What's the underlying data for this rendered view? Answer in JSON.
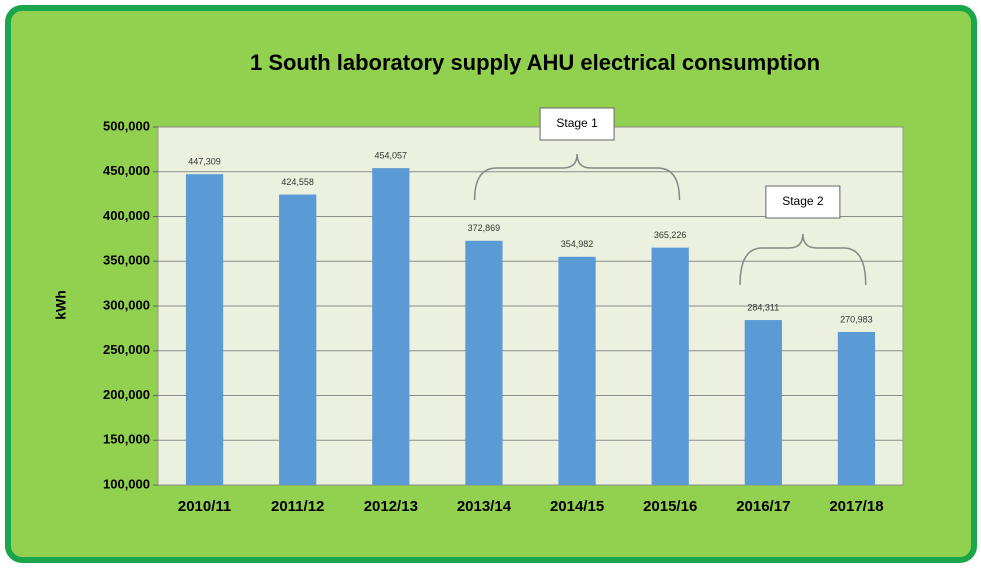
{
  "chart_data": {
    "type": "bar",
    "title": "1 South laboratory supply AHU electrical consumption",
    "ylabel": "kWh",
    "categories": [
      "2010/11",
      "2011/12",
      "2012/13",
      "2013/14",
      "2014/15",
      "2015/16",
      "2016/17",
      "2017/18"
    ],
    "values": [
      447309,
      424558,
      454057,
      372869,
      354982,
      365226,
      284311,
      270983
    ],
    "value_labels": [
      "447,309",
      "424,558",
      "454,057",
      "372,869",
      "354,982",
      "365,226",
      "284,311",
      "270,983"
    ],
    "color": "#5b9bd5",
    "ylim": [
      100000,
      500000
    ],
    "yticks": [
      {
        "value": 100000,
        "label": "100,000"
      },
      {
        "value": 150000,
        "label": "150,000"
      },
      {
        "value": 200000,
        "label": "200,000"
      },
      {
        "value": 250000,
        "label": "250,000"
      },
      {
        "value": 300000,
        "label": "300,000"
      },
      {
        "value": 350000,
        "label": "350,000"
      },
      {
        "value": 400000,
        "label": "400,000"
      },
      {
        "value": 450000,
        "label": "450,000"
      },
      {
        "value": 500000,
        "label": "500,000"
      }
    ],
    "grid": true,
    "annotations": [
      "Stage 1",
      "Stage 2"
    ]
  }
}
